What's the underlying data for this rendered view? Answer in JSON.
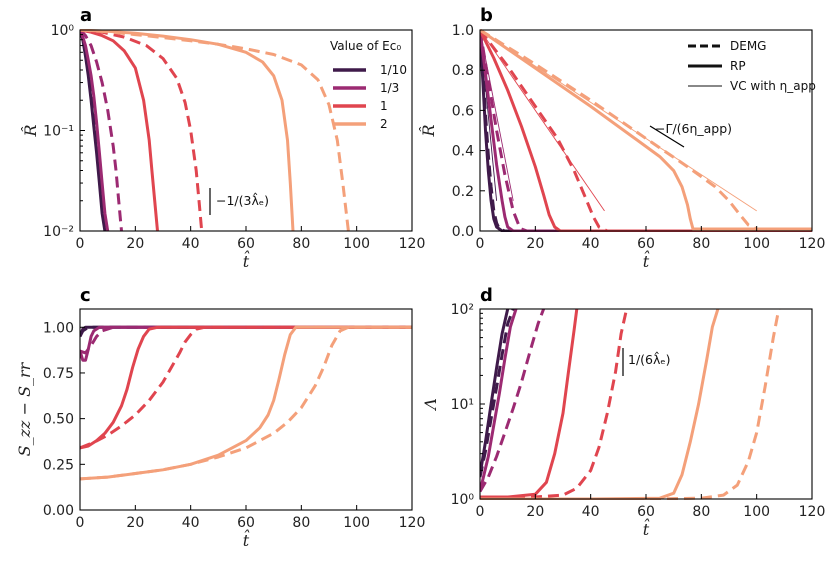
{
  "colors": {
    "c1": "#3f1a4a",
    "c2": "#9c2a72",
    "c3": "#e0454f",
    "c4": "#f4a07a"
  },
  "legend_a": {
    "title": "Value of Ec₀",
    "entries": [
      {
        "label": "1/10",
        "color": "#3f1a4a"
      },
      {
        "label": "1/3",
        "color": "#9c2a72"
      },
      {
        "label": "1",
        "color": "#e0454f"
      },
      {
        "label": "2",
        "color": "#f4a07a"
      }
    ]
  },
  "legend_b": {
    "entries": [
      "DEMG",
      "RP",
      "VC with η_app"
    ]
  },
  "chart_data": [
    {
      "panel": "a",
      "type": "line",
      "xlabel": "t̂",
      "ylabel": "R̂",
      "xlim": [
        0,
        120
      ],
      "ylim": [
        0.01,
        1
      ],
      "yscale": "log",
      "xticks": [
        "0",
        "20",
        "40",
        "60",
        "80",
        "100",
        "120"
      ],
      "yticks": [
        "10⁰",
        "10⁻¹",
        "10⁻²"
      ],
      "annotation": "−1/(3λ̂ₑ)",
      "series": [
        {
          "name": "1/10 RP",
          "style": "solid",
          "color": "#3f1a4a",
          "x": [
            0,
            1,
            2,
            3,
            4,
            5,
            6,
            7,
            8,
            9
          ],
          "y": [
            1,
            0.8,
            0.55,
            0.35,
            0.2,
            0.11,
            0.06,
            0.03,
            0.015,
            0.01
          ]
        },
        {
          "name": "1/10 DEMG",
          "style": "dashed",
          "color": "#3f1a4a",
          "x": [
            0,
            1,
            2,
            3,
            4,
            5,
            6,
            7,
            8,
            9.5
          ],
          "y": [
            1,
            0.85,
            0.62,
            0.4,
            0.24,
            0.13,
            0.07,
            0.035,
            0.018,
            0.01
          ]
        },
        {
          "name": "1/3 RP",
          "style": "solid",
          "color": "#9c2a72",
          "x": [
            0,
            1,
            2,
            3,
            4,
            5,
            6,
            7,
            8,
            9,
            10
          ],
          "y": [
            1,
            0.85,
            0.7,
            0.5,
            0.35,
            0.22,
            0.12,
            0.06,
            0.03,
            0.015,
            0.01
          ]
        },
        {
          "name": "1/3 DEMG",
          "style": "dashed",
          "color": "#9c2a72",
          "x": [
            0,
            2,
            4,
            6,
            8,
            10,
            12,
            13,
            14,
            15
          ],
          "y": [
            1,
            0.88,
            0.7,
            0.48,
            0.3,
            0.16,
            0.07,
            0.04,
            0.02,
            0.01
          ]
        },
        {
          "name": "1 RP",
          "style": "solid",
          "color": "#e0454f",
          "x": [
            0,
            4,
            8,
            12,
            16,
            20,
            23,
            25,
            26,
            27,
            28
          ],
          "y": [
            1,
            0.95,
            0.88,
            0.78,
            0.62,
            0.42,
            0.2,
            0.08,
            0.04,
            0.02,
            0.01
          ]
        },
        {
          "name": "1 DEMG",
          "style": "dashed",
          "color": "#e0454f",
          "x": [
            0,
            8,
            16,
            24,
            30,
            35,
            38,
            40,
            42,
            43,
            44
          ],
          "y": [
            1,
            0.95,
            0.85,
            0.7,
            0.52,
            0.33,
            0.19,
            0.1,
            0.04,
            0.02,
            0.01
          ]
        },
        {
          "name": "2 RP",
          "style": "solid",
          "color": "#f4a07a",
          "x": [
            0,
            10,
            20,
            30,
            40,
            50,
            60,
            66,
            70,
            73,
            75,
            76,
            77
          ],
          "y": [
            1,
            0.97,
            0.93,
            0.87,
            0.8,
            0.72,
            0.6,
            0.48,
            0.35,
            0.2,
            0.08,
            0.03,
            0.01
          ]
        },
        {
          "name": "2 DEMG",
          "style": "dashed",
          "color": "#f4a07a",
          "x": [
            0,
            10,
            20,
            30,
            40,
            50,
            60,
            70,
            80,
            86,
            90,
            93,
            95,
            97
          ],
          "y": [
            1,
            0.96,
            0.9,
            0.84,
            0.78,
            0.72,
            0.65,
            0.57,
            0.45,
            0.32,
            0.18,
            0.08,
            0.03,
            0.01
          ]
        }
      ]
    },
    {
      "panel": "b",
      "type": "line",
      "xlabel": "t̂",
      "ylabel": "R̂",
      "xlim": [
        0,
        120
      ],
      "ylim": [
        0,
        1
      ],
      "xticks": [
        "0",
        "20",
        "40",
        "60",
        "80",
        "100",
        "120"
      ],
      "yticks": [
        "0.0",
        "0.2",
        "0.4",
        "0.6",
        "0.8",
        "1.0"
      ],
      "annotation": "−Γ/(6η_app)",
      "series": [
        {
          "name": "1/10 RP",
          "style": "solid",
          "color": "#3f1a4a",
          "x": [
            0,
            1,
            2,
            3,
            4,
            5,
            6,
            8,
            120
          ],
          "y": [
            1,
            0.75,
            0.5,
            0.3,
            0.15,
            0.06,
            0.02,
            0,
            0
          ]
        },
        {
          "name": "1/10 DEMG",
          "style": "dashed",
          "color": "#3f1a4a",
          "x": [
            0,
            1,
            2,
            3,
            4,
            5,
            6,
            7,
            9,
            120
          ],
          "y": [
            1,
            0.8,
            0.58,
            0.38,
            0.22,
            0.1,
            0.04,
            0.01,
            0,
            0
          ]
        },
        {
          "name": "1/10 VC",
          "style": "thin",
          "color": "#3f1a4a",
          "x": [
            0,
            6
          ],
          "y": [
            1,
            0.15
          ]
        },
        {
          "name": "1/3 RP",
          "style": "solid",
          "color": "#9c2a72",
          "x": [
            0,
            2,
            4,
            6,
            8,
            9,
            10,
            12,
            120
          ],
          "y": [
            1,
            0.78,
            0.55,
            0.33,
            0.15,
            0.07,
            0.02,
            0,
            0
          ]
        },
        {
          "name": "1/3 DEMG",
          "style": "dashed",
          "color": "#9c2a72",
          "x": [
            0,
            3,
            6,
            9,
            12,
            14,
            15,
            17,
            120
          ],
          "y": [
            1,
            0.75,
            0.5,
            0.28,
            0.1,
            0.03,
            0.01,
            0,
            0
          ]
        },
        {
          "name": "1/3 VC",
          "style": "thin",
          "color": "#9c2a72",
          "x": [
            0,
            12
          ],
          "y": [
            1,
            0.15
          ]
        },
        {
          "name": "1 RP",
          "style": "solid",
          "color": "#e0454f",
          "x": [
            0,
            5,
            10,
            15,
            20,
            23,
            25,
            27,
            29,
            120
          ],
          "y": [
            1,
            0.86,
            0.7,
            0.52,
            0.32,
            0.18,
            0.08,
            0.02,
            0,
            0
          ]
        },
        {
          "name": "1 DEMG",
          "style": "dashed",
          "color": "#e0454f",
          "x": [
            0,
            10,
            20,
            28,
            34,
            38,
            41,
            43,
            46,
            120
          ],
          "y": [
            1,
            0.82,
            0.62,
            0.46,
            0.3,
            0.17,
            0.07,
            0.02,
            0,
            0
          ]
        },
        {
          "name": "1 VC",
          "style": "thin",
          "color": "#e0454f",
          "x": [
            0,
            45
          ],
          "y": [
            1,
            0.1
          ]
        },
        {
          "name": "2 RP",
          "style": "solid",
          "color": "#f4a07a",
          "x": [
            0,
            20,
            40,
            55,
            65,
            70,
            73,
            75,
            76,
            77,
            120
          ],
          "y": [
            1,
            0.81,
            0.62,
            0.47,
            0.37,
            0.3,
            0.22,
            0.13,
            0.06,
            0.01,
            0.01
          ]
        },
        {
          "name": "2 DEMG",
          "style": "dashed",
          "color": "#f4a07a",
          "x": [
            0,
            20,
            40,
            60,
            75,
            85,
            90,
            94,
            97,
            100,
            120
          ],
          "y": [
            1,
            0.83,
            0.65,
            0.46,
            0.32,
            0.22,
            0.15,
            0.08,
            0.03,
            0.01,
            0.01
          ]
        },
        {
          "name": "2 VC",
          "style": "thin",
          "color": "#f4a07a",
          "x": [
            0,
            100
          ],
          "y": [
            1,
            0.1
          ]
        }
      ]
    },
    {
      "panel": "c",
      "type": "line",
      "xlabel": "t̂",
      "ylabel": "S_zz − S_rr",
      "xlim": [
        0,
        120
      ],
      "ylim": [
        0,
        1.1
      ],
      "xticks": [
        "0",
        "20",
        "40",
        "60",
        "80",
        "100",
        "120"
      ],
      "yticks": [
        "0.00",
        "0.25",
        "0.50",
        "0.75",
        "1.00"
      ],
      "series": [
        {
          "name": "1/10 RP",
          "style": "solid",
          "color": "#3f1a4a",
          "x": [
            0,
            1,
            2,
            3,
            5,
            8,
            120
          ],
          "y": [
            0.95,
            0.99,
            1,
            1,
            1,
            1,
            1
          ]
        },
        {
          "name": "1/10 DEMG",
          "style": "dashed",
          "color": "#3f1a4a",
          "x": [
            0,
            1,
            2,
            3,
            5,
            10,
            120
          ],
          "y": [
            0.95,
            0.98,
            0.99,
            1,
            1,
            1,
            1
          ]
        },
        {
          "name": "1/3 RP",
          "style": "solid",
          "color": "#9c2a72",
          "x": [
            0,
            1,
            2,
            3,
            4,
            5,
            7,
            9,
            120
          ],
          "y": [
            0.87,
            0.82,
            0.82,
            0.88,
            0.95,
            0.98,
            1,
            1,
            1
          ]
        },
        {
          "name": "1/3 DEMG",
          "style": "dashed",
          "color": "#9c2a72",
          "x": [
            0,
            2,
            4,
            6,
            8,
            10,
            12,
            120
          ],
          "y": [
            0.87,
            0.86,
            0.9,
            0.95,
            0.98,
            0.99,
            1,
            1
          ]
        },
        {
          "name": "1 RP",
          "style": "solid",
          "color": "#e0454f",
          "x": [
            0,
            3,
            6,
            9,
            12,
            15,
            17,
            19,
            21,
            23,
            25,
            28,
            120
          ],
          "y": [
            0.34,
            0.35,
            0.38,
            0.42,
            0.48,
            0.57,
            0.66,
            0.78,
            0.88,
            0.95,
            0.99,
            1,
            1
          ]
        },
        {
          "name": "1 DEMG",
          "style": "dashed",
          "color": "#e0454f",
          "x": [
            0,
            5,
            10,
            15,
            20,
            25,
            30,
            33,
            36,
            38,
            40,
            42,
            45,
            120
          ],
          "y": [
            0.34,
            0.37,
            0.41,
            0.46,
            0.52,
            0.6,
            0.7,
            0.78,
            0.86,
            0.92,
            0.96,
            0.99,
            1,
            1
          ]
        },
        {
          "name": "2 RP",
          "style": "solid",
          "color": "#f4a07a",
          "x": [
            0,
            10,
            20,
            30,
            40,
            50,
            60,
            65,
            68,
            70,
            72,
            74,
            76,
            78,
            120
          ],
          "y": [
            0.17,
            0.18,
            0.2,
            0.22,
            0.25,
            0.3,
            0.38,
            0.45,
            0.52,
            0.6,
            0.72,
            0.85,
            0.96,
            1,
            1
          ]
        },
        {
          "name": "2 DEMG",
          "style": "dashed",
          "color": "#f4a07a",
          "x": [
            0,
            10,
            20,
            30,
            40,
            50,
            60,
            70,
            75,
            80,
            85,
            88,
            91,
            94,
            97,
            120
          ],
          "y": [
            0.17,
            0.18,
            0.2,
            0.22,
            0.25,
            0.29,
            0.34,
            0.42,
            0.48,
            0.56,
            0.68,
            0.78,
            0.9,
            0.98,
            1,
            1
          ]
        }
      ]
    },
    {
      "panel": "d",
      "type": "line",
      "xlabel": "t̂",
      "ylabel": "Λ",
      "xlim": [
        0,
        120
      ],
      "ylim": [
        1,
        100
      ],
      "yscale": "log",
      "xticks": [
        "0",
        "20",
        "40",
        "60",
        "80",
        "100",
        "120"
      ],
      "yticks": [
        "10⁰",
        "10¹",
        "10²"
      ],
      "annotation": "1/(6λ̂ₑ)",
      "series": [
        {
          "name": "1/10 RP",
          "style": "solid",
          "color": "#3f1a4a",
          "x": [
            0,
            2,
            4,
            6,
            8,
            10
          ],
          "y": [
            1.8,
            4,
            10,
            24,
            55,
            100
          ]
        },
        {
          "name": "1/10 DEMG",
          "style": "dashed",
          "color": "#3f1a4a",
          "x": [
            0,
            2,
            4,
            6,
            8,
            10,
            12
          ],
          "y": [
            1.7,
            3.2,
            7,
            15,
            33,
            70,
            100
          ]
        },
        {
          "name": "1/3 RP",
          "style": "solid",
          "color": "#9c2a72",
          "x": [
            0,
            3,
            5,
            7,
            9,
            11,
            13
          ],
          "y": [
            1.2,
            2.8,
            6,
            13,
            30,
            65,
            100
          ]
        },
        {
          "name": "1/3 DEMG",
          "style": "dashed",
          "color": "#9c2a72",
          "x": [
            0,
            3,
            6,
            9,
            12,
            15,
            18,
            21,
            23
          ],
          "y": [
            1.2,
            1.7,
            2.8,
            5,
            9,
            17,
            35,
            70,
            100
          ]
        },
        {
          "name": "1 RP",
          "style": "solid",
          "color": "#e0454f",
          "x": [
            0,
            10,
            20,
            24,
            27,
            30,
            32,
            34,
            35
          ],
          "y": [
            1.05,
            1.05,
            1.12,
            1.5,
            3,
            8,
            22,
            60,
            100
          ]
        },
        {
          "name": "1 DEMG",
          "style": "dashed",
          "color": "#e0454f",
          "x": [
            0,
            20,
            30,
            35,
            40,
            43,
            46,
            49,
            51,
            53
          ],
          "y": [
            1.05,
            1.05,
            1.1,
            1.3,
            2,
            3.5,
            8,
            22,
            55,
            100
          ]
        },
        {
          "name": "2 RP",
          "style": "solid",
          "color": "#f4a07a",
          "x": [
            0,
            40,
            65,
            70,
            73,
            76,
            79,
            82,
            84,
            86
          ],
          "y": [
            1,
            1,
            1.02,
            1.15,
            1.8,
            4,
            10,
            30,
            65,
            100
          ]
        },
        {
          "name": "2 DEMG",
          "style": "dashed",
          "color": "#f4a07a",
          "x": [
            0,
            60,
            80,
            88,
            93,
            97,
            100,
            103,
            106,
            108
          ],
          "y": [
            1,
            1,
            1.02,
            1.1,
            1.4,
            2.5,
            5,
            15,
            50,
            100
          ]
        }
      ]
    }
  ]
}
